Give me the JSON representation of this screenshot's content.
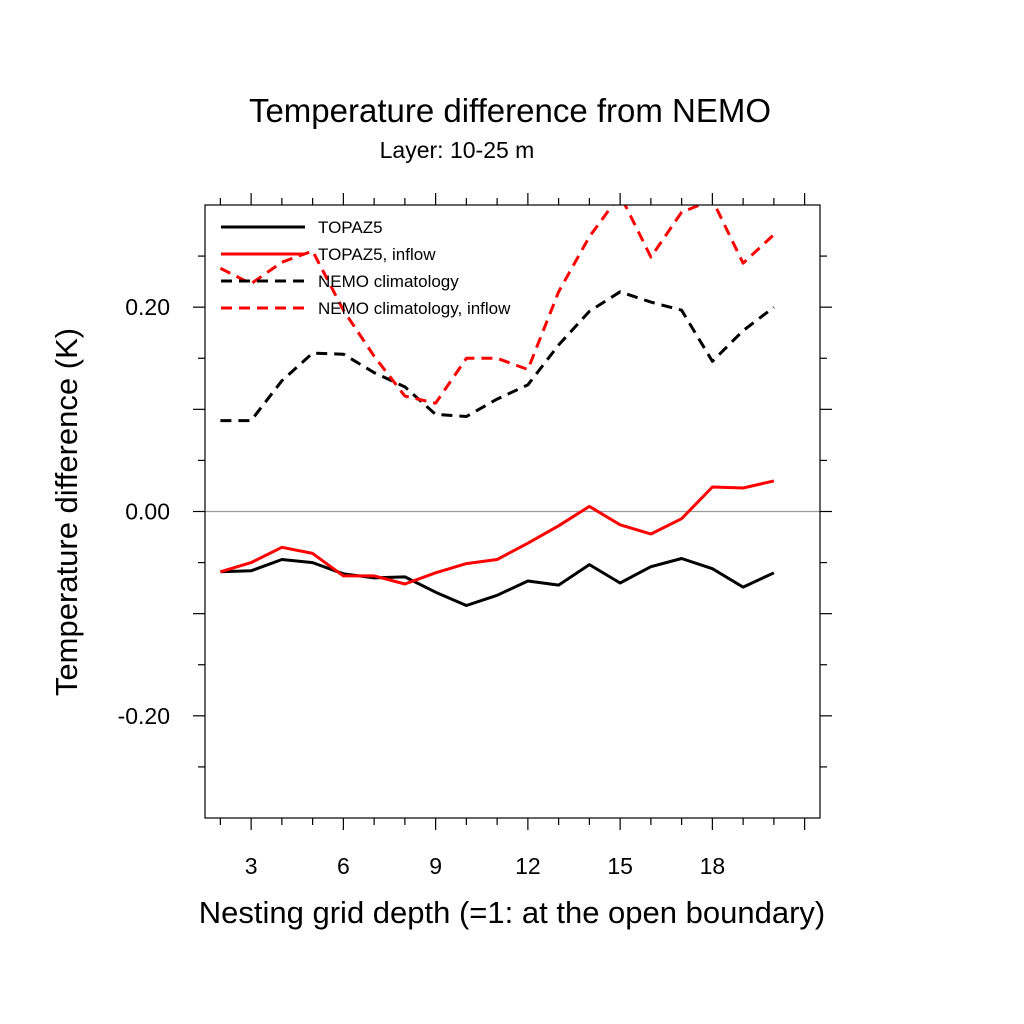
{
  "chart_data": {
    "type": "line",
    "title": "Temperature difference from NEMO",
    "subtitle": "Layer: 10-25 m",
    "xlabel": "Nesting grid depth (=1: at the open boundary)",
    "ylabel": "Temperature difference (K)",
    "xlim": [
      1.5,
      21.5
    ],
    "ylim": [
      -0.3,
      0.3
    ],
    "xticks": [
      3,
      6,
      9,
      12,
      15,
      18
    ],
    "xtick_labels": [
      "3",
      "6",
      "9",
      "12",
      "15",
      "18"
    ],
    "yticks": [
      0.2,
      0.0,
      -0.2
    ],
    "ytick_labels": [
      "0.20",
      "0.00",
      "-0.20"
    ],
    "zero_line": true,
    "grid": false,
    "legend_position": "top-left",
    "x": [
      2,
      3,
      4,
      5,
      6,
      7,
      8,
      9,
      10,
      11,
      12,
      13,
      14,
      15,
      16,
      17,
      18,
      19,
      20,
      21
    ],
    "series": [
      {
        "name": "TOPAZ5",
        "color": "#000000",
        "dash": "solid",
        "values": [
          -0.059,
          -0.058,
          -0.047,
          -0.05,
          -0.061,
          -0.065,
          -0.064,
          -0.079,
          -0.092,
          -0.082,
          -0.068,
          -0.072,
          -0.052,
          -0.07,
          -0.054,
          -0.046,
          -0.056,
          -0.074,
          -0.06,
          null
        ]
      },
      {
        "name": "TOPAZ5, inflow",
        "color": "#ff0000",
        "dash": "solid",
        "values": [
          -0.059,
          -0.05,
          -0.035,
          -0.041,
          -0.063,
          -0.063,
          -0.071,
          -0.06,
          -0.051,
          -0.047,
          -0.031,
          -0.014,
          0.005,
          -0.013,
          -0.022,
          -0.007,
          0.024,
          0.023,
          0.03,
          null
        ]
      },
      {
        "name": "NEMO climatology",
        "color": "#000000",
        "dash": "dashed",
        "values": [
          0.089,
          0.089,
          0.128,
          0.155,
          0.154,
          0.136,
          0.122,
          0.095,
          0.093,
          0.11,
          0.124,
          0.163,
          0.196,
          0.215,
          0.205,
          0.197,
          0.147,
          0.177,
          0.2,
          null
        ]
      },
      {
        "name": "NEMO climatology, inflow",
        "color": "#ff0000",
        "dash": "dashed",
        "values": [
          0.238,
          0.223,
          0.244,
          0.255,
          0.197,
          0.152,
          0.113,
          0.106,
          0.15,
          0.15,
          0.139,
          0.215,
          0.269,
          0.31,
          0.249,
          0.293,
          0.305,
          0.243,
          0.271,
          null
        ]
      }
    ]
  }
}
